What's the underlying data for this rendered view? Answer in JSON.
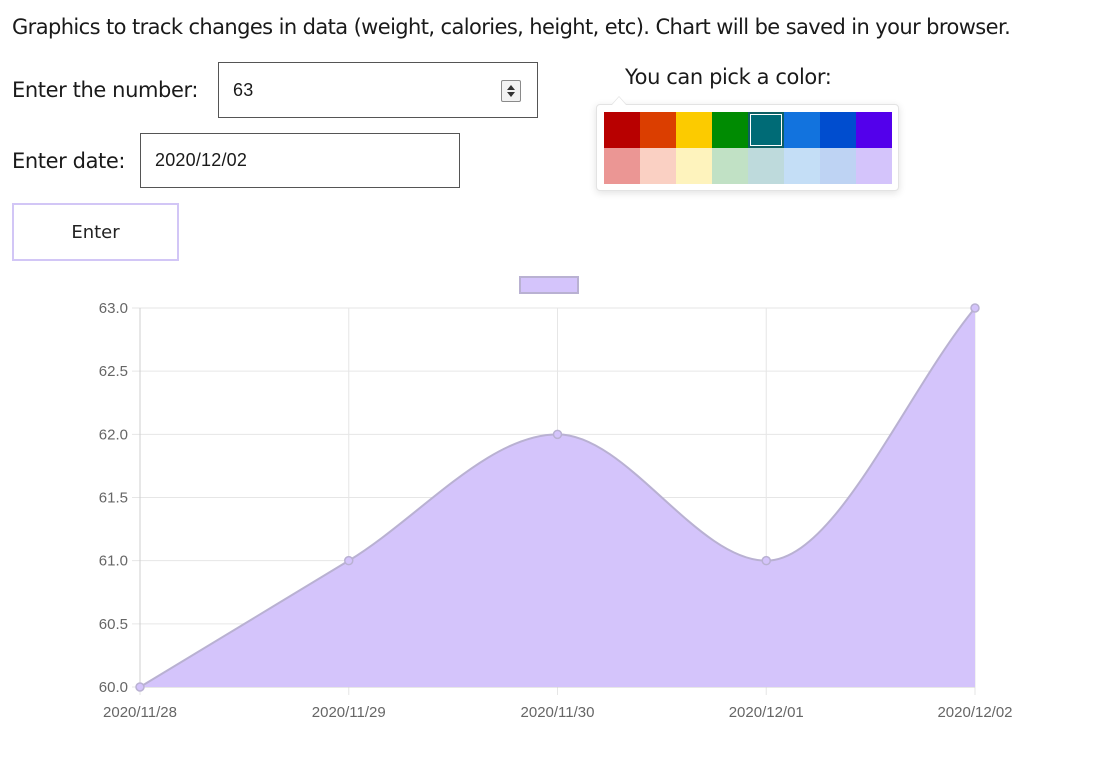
{
  "intro_text": "Graphics to track changes in data (weight, calories, height, etc). Chart will be saved in your browser.",
  "number_field": {
    "label": "Enter the number:",
    "value": "63"
  },
  "date_field": {
    "label": "Enter date:",
    "value": "2020/12/02"
  },
  "enter_button": {
    "label": "Enter"
  },
  "color_picker": {
    "label": "You can pick a color:",
    "selected": "#006d75",
    "swatches": [
      "#b80000",
      "#db3e00",
      "#fccb00",
      "#008b02",
      "#006b76",
      "#1273de",
      "#004dcf",
      "#5300eb",
      "#eb9694",
      "#fad0c3",
      "#fef3bd",
      "#c1e1c5",
      "#bedadc",
      "#c4def6",
      "#bed3f3",
      "#d4c4fb"
    ]
  },
  "chart_data": {
    "type": "area",
    "x": [
      "2020/11/28",
      "2020/11/29",
      "2020/11/30",
      "2020/12/01",
      "2020/12/02"
    ],
    "values": [
      60,
      61,
      62,
      61,
      63
    ],
    "ylim": [
      60.0,
      63.0
    ],
    "yticks": [
      "60.0",
      "60.5",
      "61.0",
      "61.5",
      "62.0",
      "62.5",
      "63.0"
    ],
    "fill_color": "#d4c4fb",
    "line_color": "#b9b1d2",
    "grid": true,
    "legend_position": "top-center",
    "legend_label": ""
  }
}
